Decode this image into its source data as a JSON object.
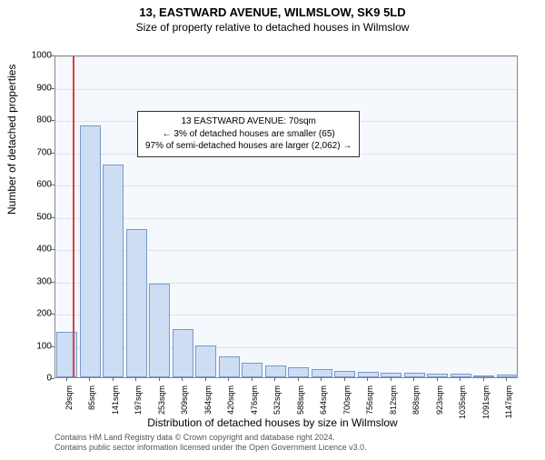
{
  "header": {
    "title": "13, EASTWARD AVENUE, WILMSLOW, SK9 5LD",
    "subtitle": "Size of property relative to detached houses in Wilmslow"
  },
  "chart": {
    "type": "histogram",
    "plot_background": "#f5f8fc",
    "grid_color": "#dde3ec",
    "bar_fill": "#cdddf4",
    "bar_border": "#7a99c9",
    "refline_color": "#d94040",
    "ylim": [
      0,
      1000
    ],
    "ytick_step": 100,
    "ylabel": "Number of detached properties",
    "xlabel": "Distribution of detached houses by size in Wilmslow",
    "xtick_labels": [
      "29sqm",
      "85sqm",
      "141sqm",
      "197sqm",
      "253sqm",
      "309sqm",
      "364sqm",
      "420sqm",
      "476sqm",
      "532sqm",
      "588sqm",
      "644sqm",
      "700sqm",
      "756sqm",
      "812sqm",
      "868sqm",
      "923sqm",
      "1035sqm",
      "1091sqm",
      "1147sqm"
    ],
    "bars": [
      140,
      780,
      660,
      460,
      290,
      150,
      100,
      65,
      45,
      38,
      30,
      25,
      20,
      18,
      15,
      14,
      12,
      10,
      2,
      8
    ],
    "refline_position": 0.037,
    "annotation": {
      "line1": "13 EASTWARD AVENUE: 70sqm",
      "line2": "← 3% of detached houses are smaller (65)",
      "line3": "97% of semi-detached houses are larger (2,062) →"
    }
  },
  "footer": {
    "line1": "Contains HM Land Registry data © Crown copyright and database right 2024.",
    "line2": "Contains public sector information licensed under the Open Government Licence v3.0."
  }
}
